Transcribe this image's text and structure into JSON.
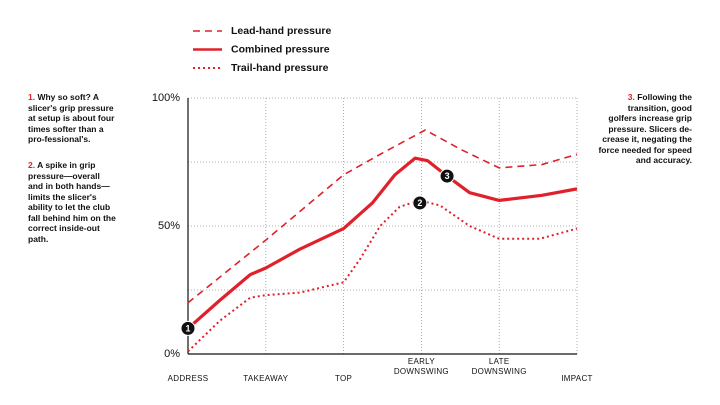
{
  "chart_data": {
    "type": "line",
    "xlim": [
      0,
      5
    ],
    "xticks": [
      {
        "value": 0,
        "label": "ADDRESS"
      },
      {
        "value": 1,
        "label": "TAKEAWAY"
      },
      {
        "value": 2,
        "label": "TOP"
      },
      {
        "value": 3,
        "label": "EARLY DOWNSWING"
      },
      {
        "value": 4,
        "label": "LATE DOWNSWING"
      },
      {
        "value": 5,
        "label": "IMPACT"
      }
    ],
    "ylim": [
      0,
      100
    ],
    "yticks": [
      {
        "value": 0,
        "label": "0%"
      },
      {
        "value": 50,
        "label": "50%"
      },
      {
        "value": 100,
        "label": "100%"
      }
    ],
    "ygrid": [
      0,
      25,
      50,
      75,
      100
    ],
    "grid": true,
    "series": [
      {
        "name": "Lead-hand pressure",
        "color": "#e0202a",
        "style": "dashed",
        "x": [
          0,
          1,
          2,
          2.5,
          3.05,
          3.5,
          4,
          4.55,
          5
        ],
        "values": [
          20,
          44.5,
          70,
          78.5,
          87.5,
          80,
          72.7,
          74,
          78
        ]
      },
      {
        "name": "Combined pressure",
        "color": "#e0202a",
        "style": "solid",
        "x": [
          0,
          0.41,
          0.8,
          1,
          1.44,
          2,
          2.37,
          2.66,
          2.92,
          3.08,
          3.33,
          3.62,
          4,
          4.55,
          5
        ],
        "values": [
          10,
          21,
          31,
          33.6,
          41,
          49,
          59,
          70,
          76.5,
          75.5,
          69.5,
          63,
          60,
          62,
          64.5
        ]
      },
      {
        "name": "Trail-hand pressure",
        "color": "#e0202a",
        "style": "dotted",
        "x": [
          0,
          0.41,
          0.8,
          1,
          1.44,
          2,
          2.21,
          2.47,
          2.72,
          2.98,
          3.24,
          3.62,
          4,
          4.52,
          5
        ],
        "values": [
          1,
          13,
          22,
          23,
          24,
          28,
          37,
          50,
          57.5,
          60,
          58,
          50,
          45,
          45,
          49
        ]
      }
    ],
    "markers": [
      {
        "label": "1",
        "x": 0,
        "y": 10
      },
      {
        "label": "2",
        "x": 2.98,
        "y": 59
      },
      {
        "label": "3",
        "x": 3.33,
        "y": 69.5
      }
    ],
    "annotations": [
      {
        "number": "1.",
        "text": "Why so soft? A slicer's grip pressure at setup is about four times softer than a pro-fessional's."
      },
      {
        "number": "2.",
        "text": "A spike in grip pressure—overall and in both hands—limits the slicer's ability to let the club fall behind him on the correct inside-out path."
      },
      {
        "number": "3.",
        "text": "Following the transition, good golfers increase grip pressure. Slicers de-crease it, negating the force needed for speed and accuracy."
      }
    ]
  }
}
